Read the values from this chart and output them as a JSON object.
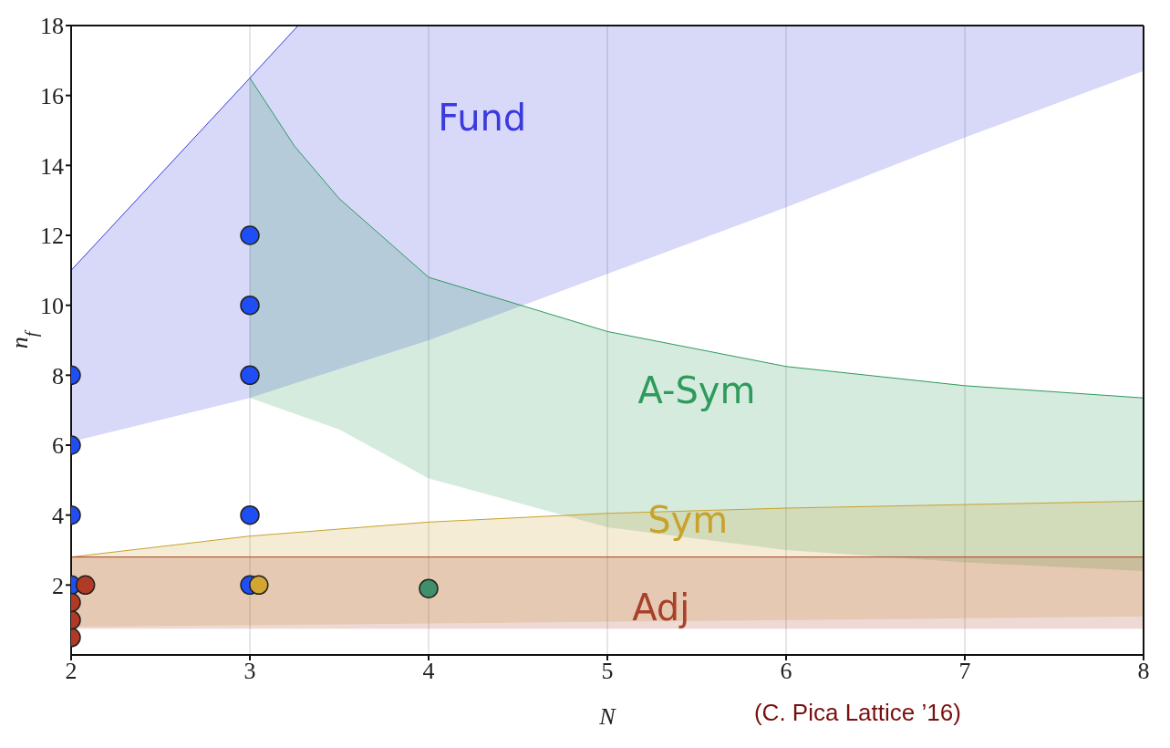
{
  "chart_data": {
    "type": "line",
    "xlabel": "N",
    "ylabel": "n$_{f}$",
    "annotations": [
      "(C. Pica Lattice ’16)"
    ],
    "xlim": [
      2,
      8
    ],
    "xticks": [
      2,
      3,
      4,
      5,
      6,
      7,
      8
    ],
    "ylim": [
      0,
      18
    ],
    "yticks": [
      2,
      4,
      6,
      8,
      10,
      12,
      14,
      16,
      18
    ],
    "grid": "x",
    "legend": false,
    "marker": "circle",
    "series": [
      {
        "name": "Fund",
        "color": "#3a3ae0",
        "marker": "none",
        "x": [
          2,
          3,
          3.27,
          4,
          5,
          6,
          7,
          8
        ],
        "values": [
          11,
          16.5,
          18,
          null,
          null,
          null,
          null,
          null
        ],
        "lower": [
          6.1,
          7.35,
          7.8,
          9.0,
          10.9,
          12.8,
          14.8,
          16.7
        ],
        "upper": [
          11,
          16.5,
          18,
          18,
          18,
          18,
          18,
          18
        ]
      },
      {
        "name": "A-Sym",
        "color": "#2e9a5c",
        "marker": "none",
        "x": [
          3,
          3.25,
          3.5,
          4,
          5,
          6,
          7,
          8
        ],
        "values": [
          16.5,
          14.55,
          13.05,
          10.8,
          9.25,
          8.25,
          7.7,
          7.35
        ],
        "lower": [
          7.35,
          6.9,
          6.45,
          5.05,
          3.65,
          3.0,
          2.65,
          2.4
        ],
        "upper": [
          16.5,
          14.55,
          13.05,
          10.8,
          9.25,
          8.25,
          7.7,
          7.35
        ]
      },
      {
        "name": "Sym",
        "color": "#c9a22c",
        "marker": "none",
        "x": [
          2,
          3,
          4,
          5,
          6,
          7,
          8
        ],
        "values": [
          2.8,
          3.4,
          3.8,
          4.05,
          4.2,
          4.3,
          4.4
        ],
        "lower": [
          0.8,
          0.85,
          0.9,
          0.95,
          1.0,
          1.05,
          1.1
        ],
        "upper": [
          2.8,
          3.4,
          3.8,
          4.05,
          4.2,
          4.3,
          4.4
        ]
      },
      {
        "name": "Adj",
        "color": "#a8402a",
        "marker": "none",
        "x": [
          2,
          8
        ],
        "values": [
          2.8,
          2.8
        ],
        "lower": [
          0.75,
          0.75
        ],
        "upper": [
          2.8,
          2.8
        ]
      },
      {
        "type": "scatter",
        "color": "#1f4ef5",
        "x": [
          2,
          2,
          2,
          2,
          3,
          3,
          3,
          3,
          3
        ],
        "values": [
          2,
          4,
          6,
          8,
          2,
          4,
          8,
          10,
          12
        ]
      },
      {
        "type": "scatter",
        "color": "#d4a530",
        "x": [
          3.05
        ],
        "values": [
          2
        ]
      },
      {
        "type": "scatter",
        "color": "#3f8f6a",
        "x": [
          4
        ],
        "values": [
          1.9
        ]
      },
      {
        "type": "scatter",
        "color": "#b03a25",
        "x": [
          2,
          2,
          2,
          2.08
        ],
        "values": [
          0.5,
          1,
          1.5,
          2
        ]
      }
    ]
  }
}
